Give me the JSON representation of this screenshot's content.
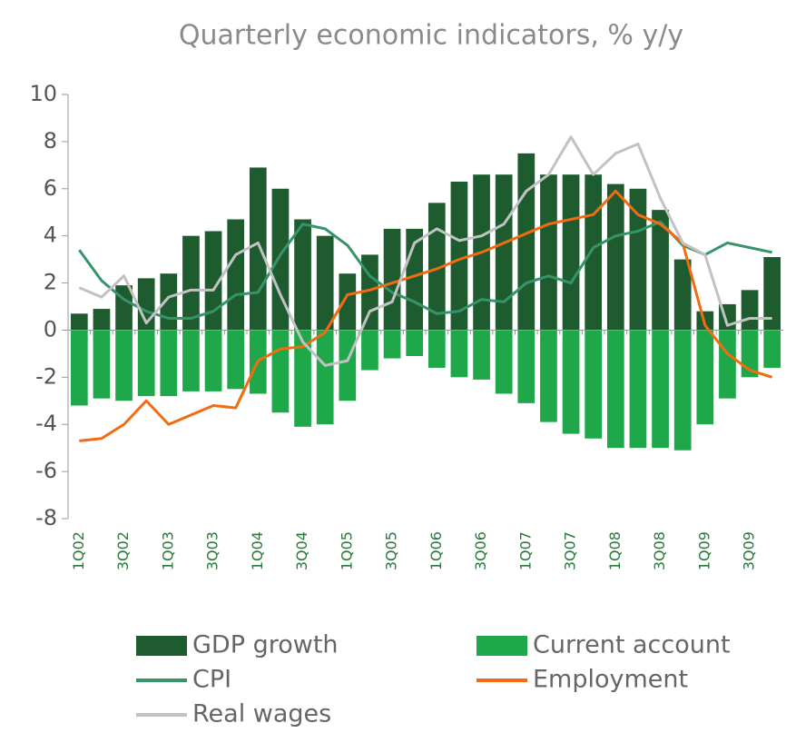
{
  "chart_data": {
    "type": "bar",
    "title": "Quarterly economic indicators, % y/y",
    "categories": [
      "1Q02",
      null,
      "3Q02",
      null,
      "1Q03",
      null,
      "3Q03",
      null,
      "1Q04",
      null,
      "3Q04",
      null,
      "1Q05",
      null,
      "3Q05",
      null,
      "1Q06",
      null,
      "3Q06",
      null,
      "1Q07",
      null,
      "3Q07",
      null,
      "1Q08",
      null,
      "3Q08",
      null,
      "1Q09",
      null,
      "3Q09",
      null
    ],
    "series": [
      {
        "name": "GDP growth",
        "type": "bar",
        "color": "#1e5c30",
        "values": [
          0.7,
          0.9,
          1.9,
          2.2,
          2.4,
          4.0,
          4.2,
          4.7,
          6.9,
          6.0,
          4.7,
          4.0,
          2.4,
          3.2,
          4.3,
          4.3,
          5.4,
          6.3,
          6.6,
          6.6,
          7.5,
          6.6,
          6.6,
          6.6,
          6.2,
          6.0,
          5.1,
          3.0,
          0.8,
          1.1,
          1.7,
          3.1
        ]
      },
      {
        "name": "Current account",
        "type": "bar",
        "color": "#1fa84a",
        "values": [
          -3.2,
          -2.9,
          -3.0,
          -2.8,
          -2.8,
          -2.6,
          -2.6,
          -2.5,
          -2.7,
          -3.5,
          -4.1,
          -4.0,
          -3.0,
          -1.7,
          -1.2,
          -1.1,
          -1.6,
          -2.0,
          -2.1,
          -2.7,
          -3.1,
          -3.9,
          -4.4,
          -4.6,
          -5.0,
          -5.0,
          -5.0,
          -5.1,
          -4.0,
          -2.9,
          -2.0,
          -1.6
        ]
      },
      {
        "name": "CPI",
        "type": "line",
        "color": "#36936a",
        "values": [
          3.4,
          2.1,
          1.3,
          0.8,
          0.5,
          0.5,
          0.8,
          1.5,
          1.6,
          3.2,
          4.5,
          4.3,
          3.6,
          2.3,
          1.6,
          1.2,
          0.7,
          0.8,
          1.3,
          1.2,
          2.0,
          2.3,
          2.0,
          3.5,
          4.0,
          4.2,
          4.6,
          3.6,
          3.2,
          3.7,
          3.5,
          3.3
        ]
      },
      {
        "name": "Employment",
        "type": "line",
        "color": "#f26b12",
        "values": [
          -4.7,
          -4.6,
          -4.0,
          -3.0,
          -4.0,
          -3.6,
          -3.2,
          -3.3,
          -1.3,
          -0.8,
          -0.7,
          -0.1,
          1.5,
          1.7,
          2.0,
          2.3,
          2.6,
          3.0,
          3.3,
          3.7,
          4.1,
          4.5,
          4.7,
          4.9,
          5.9,
          4.9,
          4.5,
          3.7,
          0.2,
          -1.0,
          -1.7,
          -2.0
        ]
      },
      {
        "name": "Real wages",
        "type": "line",
        "color": "#c2c2c2",
        "values": [
          1.8,
          1.4,
          2.3,
          0.3,
          1.4,
          1.7,
          1.7,
          3.2,
          3.7,
          1.5,
          -0.5,
          -1.5,
          -1.3,
          0.8,
          1.2,
          3.7,
          4.3,
          3.8,
          4.0,
          4.5,
          5.9,
          6.6,
          8.2,
          6.6,
          7.5,
          7.9,
          5.6,
          3.7,
          3.2,
          0.2,
          0.5,
          0.5
        ]
      }
    ],
    "ylim": [
      -8,
      10
    ],
    "yticks": [
      -8,
      -6,
      -4,
      -2,
      0,
      2,
      4,
      6,
      8,
      10
    ]
  }
}
